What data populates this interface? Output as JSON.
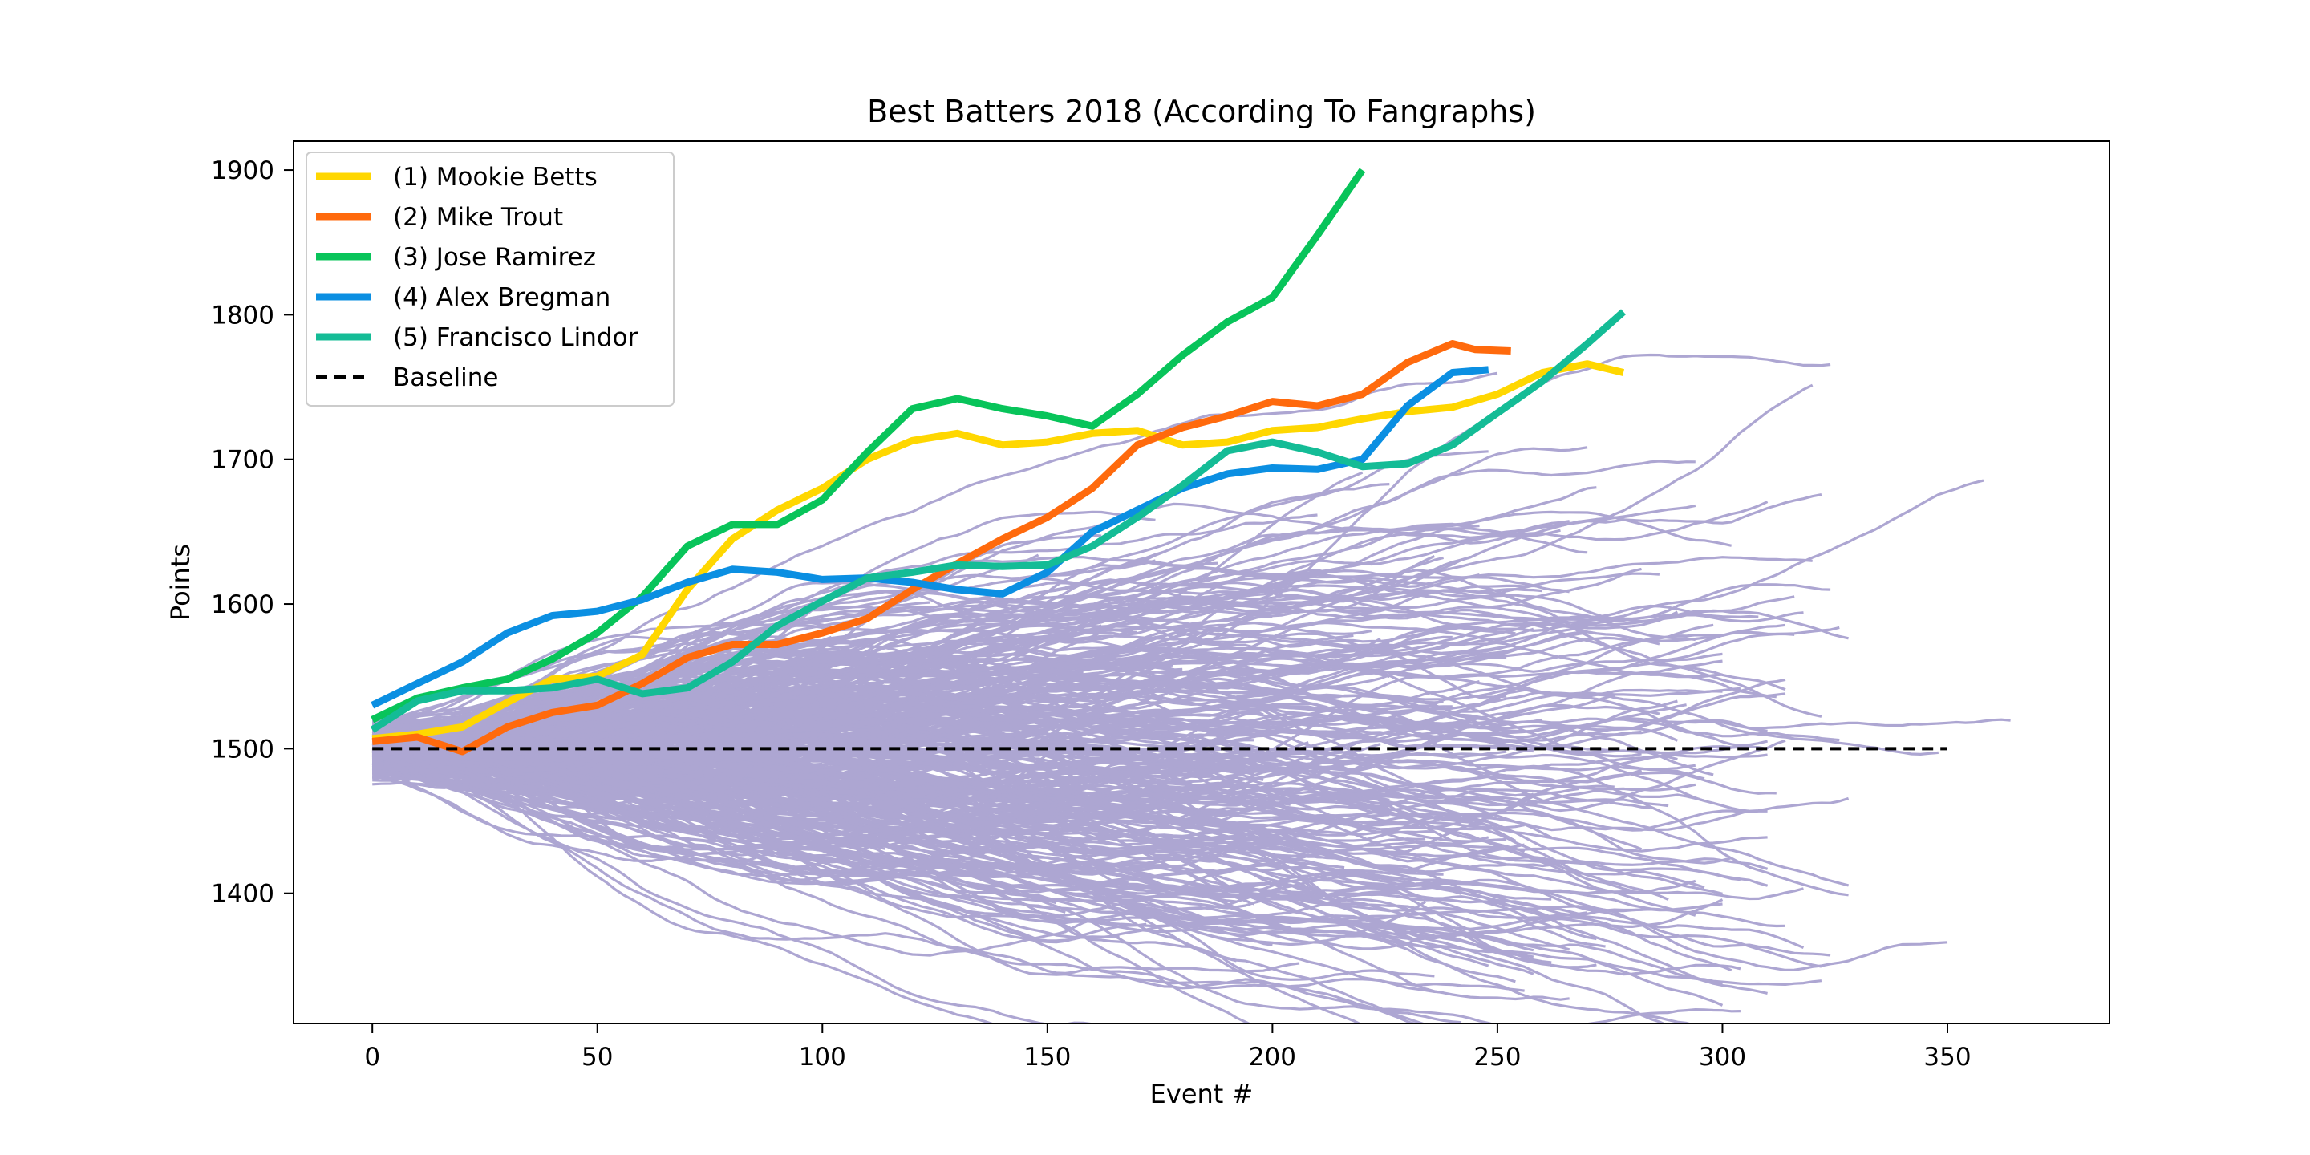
{
  "chart_data": {
    "type": "line",
    "title": "Best Batters 2018 (According To Fangraphs)",
    "xlabel": "Event #",
    "ylabel": "Points",
    "xlim": [
      -17.5,
      386
    ],
    "ylim": [
      1310,
      1920
    ],
    "x_ticks": [
      0,
      50,
      100,
      150,
      200,
      250,
      300,
      350
    ],
    "y_ticks": [
      1400,
      1500,
      1600,
      1700,
      1800,
      1900
    ],
    "grid": false,
    "legend_position": "top-left",
    "background_color": "#ada6d2",
    "series": [
      {
        "name": "(1) Mookie Betts",
        "color": "#ffd700",
        "x": [
          0,
          10,
          20,
          30,
          40,
          50,
          60,
          70,
          80,
          90,
          100,
          110,
          120,
          130,
          140,
          150,
          160,
          170,
          180,
          190,
          200,
          210,
          220,
          230,
          240,
          250,
          260,
          270,
          278
        ],
        "y": [
          1507,
          1510,
          1515,
          1532,
          1548,
          1550,
          1565,
          1610,
          1645,
          1665,
          1680,
          1700,
          1713,
          1718,
          1710,
          1712,
          1718,
          1720,
          1710,
          1712,
          1720,
          1722,
          1728,
          1733,
          1736,
          1745,
          1760,
          1766,
          1760
        ]
      },
      {
        "name": "(2) Mike Trout",
        "color": "#ff6a0d",
        "x": [
          0,
          10,
          20,
          30,
          40,
          50,
          60,
          70,
          80,
          90,
          100,
          110,
          120,
          130,
          140,
          150,
          160,
          170,
          180,
          190,
          200,
          210,
          220,
          230,
          240,
          245,
          253
        ],
        "y": [
          1505,
          1508,
          1498,
          1515,
          1525,
          1530,
          1545,
          1563,
          1572,
          1572,
          1580,
          1590,
          1610,
          1628,
          1645,
          1660,
          1680,
          1710,
          1722,
          1730,
          1740,
          1737,
          1745,
          1767,
          1780,
          1776,
          1775
        ]
      },
      {
        "name": "(3) Jose Ramirez",
        "color": "#08c45a",
        "x": [
          0,
          10,
          20,
          30,
          40,
          50,
          60,
          70,
          80,
          90,
          100,
          110,
          120,
          130,
          140,
          150,
          160,
          170,
          180,
          190,
          200,
          210,
          220
        ],
        "y": [
          1520,
          1535,
          1542,
          1548,
          1562,
          1580,
          1605,
          1640,
          1655,
          1655,
          1672,
          1705,
          1735,
          1742,
          1735,
          1730,
          1723,
          1745,
          1772,
          1795,
          1812,
          1855,
          1900
        ]
      },
      {
        "name": "(4) Alex Bregman",
        "color": "#0b8fe2",
        "x": [
          0,
          10,
          20,
          30,
          40,
          50,
          60,
          70,
          80,
          90,
          100,
          110,
          120,
          130,
          140,
          150,
          160,
          170,
          180,
          190,
          200,
          210,
          220,
          230,
          240,
          248
        ],
        "y": [
          1530,
          1545,
          1560,
          1580,
          1592,
          1595,
          1603,
          1615,
          1624,
          1622,
          1617,
          1618,
          1615,
          1610,
          1607,
          1622,
          1650,
          1665,
          1680,
          1690,
          1694,
          1693,
          1700,
          1737,
          1760,
          1762
        ]
      },
      {
        "name": "(5) Francisco Lindor",
        "color": "#14bc96",
        "x": [
          0,
          10,
          20,
          30,
          40,
          50,
          60,
          70,
          80,
          90,
          100,
          110,
          120,
          130,
          140,
          150,
          160,
          170,
          180,
          190,
          200,
          210,
          220,
          230,
          240,
          250,
          260,
          270,
          278
        ],
        "y": [
          1513,
          1533,
          1540,
          1540,
          1542,
          1548,
          1538,
          1542,
          1560,
          1585,
          1602,
          1618,
          1622,
          1627,
          1626,
          1627,
          1640,
          1660,
          1682,
          1706,
          1712,
          1705,
          1695,
          1697,
          1710,
          1732,
          1754,
          1780,
          1802
        ]
      },
      {
        "name": "Baseline",
        "color": "#000000",
        "dashed": true,
        "x": [
          0,
          350
        ],
        "y": [
          1500,
          1500
        ]
      }
    ]
  }
}
